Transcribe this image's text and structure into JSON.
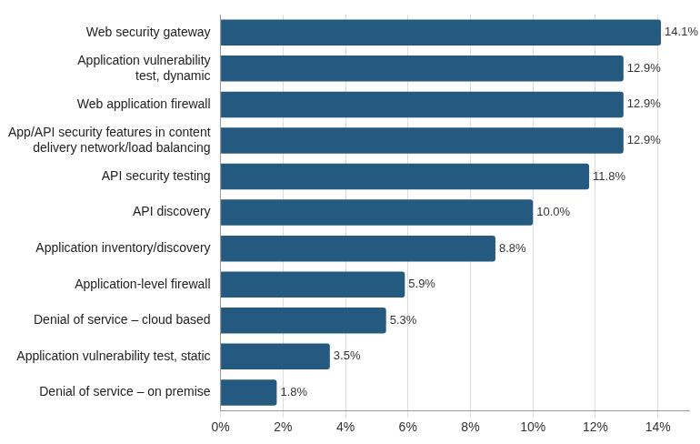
{
  "chart_data": {
    "type": "bar",
    "orientation": "horizontal",
    "categories": [
      "Web security gateway",
      "Application vulnerability\ntest, dynamic",
      "Web application firewall",
      "App/API security features in content\ndelivery network/load balancing",
      "API security testing",
      "API discovery",
      "Application inventory/discovery",
      "Application-level firewall",
      "Denial of service – cloud based",
      "Application vulnerability test, static",
      "Denial of service – on premise"
    ],
    "values": [
      14.1,
      12.9,
      12.9,
      12.9,
      11.8,
      10.0,
      8.8,
      5.9,
      5.3,
      3.5,
      1.8
    ],
    "value_labels": [
      "14.1%",
      "12.9%",
      "12.9%",
      "12.9%",
      "11.8%",
      "10.0%",
      "8.8%",
      "5.9%",
      "5.3%",
      "3.5%",
      "1.8%"
    ],
    "color": "#245a80",
    "xlim": [
      0,
      15
    ],
    "xticks": [
      {
        "value": 0,
        "label": "0%"
      },
      {
        "value": 2,
        "label": "2%"
      },
      {
        "value": 4,
        "label": "4%"
      },
      {
        "value": 6,
        "label": "6%"
      },
      {
        "value": 8,
        "label": "8%"
      },
      {
        "value": 10,
        "label": "10%"
      },
      {
        "value": 12,
        "label": "12%"
      },
      {
        "value": 14,
        "label": "14%"
      }
    ],
    "grid": true,
    "data_labels": true
  }
}
